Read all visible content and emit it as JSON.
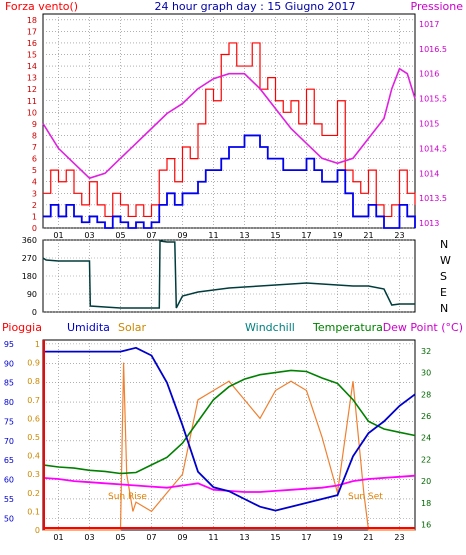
{
  "header": {
    "left": "Forza vento()",
    "title": "24 hour graph day : 15 Giugno 2017",
    "right": "Pressione"
  },
  "colors": {
    "wind_gust": "#ff0000",
    "wind_speed": "#0000ee",
    "pressure": "#e020e0",
    "direction": "#003c3c",
    "rain": "#ff0000",
    "humidity": "#0000cc",
    "solar": "#f08030",
    "windchill": "#008080",
    "temperature": "#008000",
    "dewpoint": "#ff00ff"
  },
  "legend": {
    "rain": "Pioggia",
    "humidity": "Umidita",
    "solar": "Solar",
    "windchill": "Windchill",
    "temperature": "Temperatura",
    "dewpoint": "Dew Point (°C)"
  },
  "annotations": {
    "sunrise": "Sun Rise",
    "sunset": "Sun Set"
  },
  "chart_data": [
    {
      "type": "line",
      "name": "wind-pressure",
      "x_ticks": [
        "01",
        "03",
        "05",
        "07",
        "09",
        "11",
        "13",
        "15",
        "17",
        "19",
        "21",
        "23"
      ],
      "y_left_ticks": [
        "0",
        "1",
        "2",
        "3",
        "4",
        "5",
        "6",
        "7",
        "8",
        "9",
        "10",
        "11",
        "12",
        "13",
        "14",
        "15",
        "16",
        "17",
        "18"
      ],
      "y_left_range": [
        0,
        18.5
      ],
      "y_right_ticks": [
        "1013",
        "1013.5",
        "1014",
        "1014.5",
        "1015",
        "1015.5",
        "1016",
        "1016.5",
        "1017"
      ],
      "y_right_range": [
        1012.9,
        1017.2
      ],
      "x_range": [
        0,
        24
      ],
      "series": [
        {
          "key": "gust",
          "x": [
            0,
            0.5,
            1,
            1.5,
            2,
            2.5,
            3,
            3.5,
            4,
            4.5,
            5,
            5.5,
            6,
            6.5,
            7,
            7.5,
            8,
            8.5,
            9,
            9.5,
            10,
            10.5,
            11,
            11.5,
            12,
            12.5,
            13,
            13.5,
            14,
            14.5,
            15,
            15.5,
            16,
            16.5,
            17,
            17.5,
            18,
            18.5,
            19,
            19.5,
            20,
            20.5,
            21,
            21.5,
            22,
            22.5,
            23,
            23.5,
            24
          ],
          "values": [
            3,
            5,
            4,
            5,
            3,
            2,
            4,
            2,
            1,
            3,
            2,
            1,
            2,
            1,
            2,
            5,
            6,
            4,
            7,
            6,
            9,
            12,
            11,
            15,
            16,
            14,
            14,
            16,
            12,
            13,
            11,
            10,
            11,
            9,
            12,
            9,
            8,
            8,
            11,
            5,
            4,
            3,
            5,
            2,
            1,
            2,
            5,
            3,
            2
          ]
        },
        {
          "key": "speed",
          "x": [
            0,
            0.5,
            1,
            1.5,
            2,
            2.5,
            3,
            3.5,
            4,
            4.5,
            5,
            5.5,
            6,
            6.5,
            7,
            7.5,
            8,
            8.5,
            9,
            9.5,
            10,
            10.5,
            11,
            11.5,
            12,
            12.5,
            13,
            13.5,
            14,
            14.5,
            15,
            15.5,
            16,
            16.5,
            17,
            17.5,
            18,
            18.5,
            19,
            19.5,
            20,
            20.5,
            21,
            21.5,
            22,
            22.5,
            23,
            23.5,
            24
          ],
          "values": [
            1,
            2,
            1,
            2,
            1,
            0.5,
            1,
            0.5,
            0,
            1,
            0.5,
            0,
            0.5,
            0,
            0.5,
            2,
            3,
            2,
            3,
            3,
            4,
            5,
            5,
            6,
            7,
            7,
            8,
            8,
            7,
            6,
            6,
            5,
            5,
            5,
            6,
            5,
            4,
            4,
            5,
            3,
            1,
            1,
            2,
            1,
            0,
            0,
            2,
            1,
            0
          ]
        },
        {
          "key": "pressure",
          "x": [
            0,
            1,
            2,
            3,
            4,
            5,
            6,
            7,
            8,
            9,
            10,
            11,
            12,
            13,
            14,
            15,
            16,
            17,
            18,
            19,
            20,
            21,
            22,
            22.5,
            23,
            23.5,
            24
          ],
          "values": [
            1015,
            1014.5,
            1014.2,
            1013.9,
            1014,
            1014.3,
            1014.6,
            1014.9,
            1015.2,
            1015.4,
            1015.7,
            1015.9,
            1016,
            1016,
            1015.7,
            1015.3,
            1014.9,
            1014.6,
            1014.3,
            1014.2,
            1014.3,
            1014.7,
            1015.1,
            1015.7,
            1016.1,
            1016,
            1015.5
          ]
        }
      ]
    },
    {
      "type": "line",
      "name": "wind-direction",
      "y_ticks": [
        "0",
        "90",
        "180",
        "270",
        "360"
      ],
      "y_range": [
        0,
        360
      ],
      "compass": [
        "N",
        "W",
        "S",
        "E",
        "N"
      ],
      "series": [
        {
          "key": "direction",
          "x": [
            0,
            0.2,
            1,
            2,
            3,
            3.05,
            4,
            5,
            6,
            7,
            7.5,
            7.55,
            8,
            8.5,
            8.6,
            9,
            10,
            11,
            12,
            13,
            14,
            15,
            16,
            17,
            18,
            19,
            20,
            21,
            22,
            22.5,
            23,
            24
          ],
          "values": [
            270,
            260,
            255,
            255,
            255,
            30,
            25,
            20,
            20,
            20,
            20,
            355,
            350,
            350,
            20,
            80,
            100,
            110,
            120,
            125,
            130,
            135,
            140,
            145,
            140,
            135,
            130,
            130,
            115,
            35,
            40,
            40
          ]
        }
      ]
    },
    {
      "type": "line",
      "name": "climate",
      "y_humidity_ticks": [
        "50",
        "55",
        "60",
        "65",
        "70",
        "75",
        "80",
        "85",
        "90",
        "95"
      ],
      "y_humidity_range": [
        47,
        96
      ],
      "y_solar_ticks": [
        "0",
        "0.1",
        "0.2",
        "0.3",
        "0.4",
        "0.5",
        "0.6",
        "0.7",
        "0.8",
        "0.9",
        "1"
      ],
      "y_temp_ticks": [
        "16",
        "18",
        "20",
        "22",
        "24",
        "26",
        "28",
        "30",
        "32"
      ],
      "y_temp_range": [
        15.5,
        33
      ],
      "series": [
        {
          "key": "humidity",
          "x": [
            0,
            1,
            2,
            3,
            4,
            5,
            6,
            7,
            8,
            9,
            10,
            11,
            12,
            13,
            14,
            15,
            16,
            17,
            18,
            19,
            20,
            21,
            22,
            23,
            24
          ],
          "values": [
            93,
            93,
            93,
            93,
            93,
            93,
            94,
            92,
            85,
            74,
            62,
            58,
            57,
            55,
            53,
            52,
            53,
            54,
            55,
            56,
            66,
            72,
            75,
            79,
            82
          ]
        },
        {
          "key": "solar",
          "x": [
            0,
            5,
            5.2,
            5.4,
            5.8,
            6,
            7,
            8,
            9,
            10,
            11,
            12,
            13,
            14,
            15,
            16,
            17,
            18,
            19,
            20,
            20.7,
            21,
            24
          ],
          "values": [
            0,
            0,
            0.9,
            0.3,
            0.1,
            0.15,
            0.1,
            0.2,
            0.3,
            0.7,
            0.75,
            0.8,
            0.7,
            0.6,
            0.75,
            0.8,
            0.75,
            0.5,
            0.2,
            0.8,
            0.2,
            0,
            0
          ]
        },
        {
          "key": "temperature",
          "x": [
            0,
            1,
            2,
            3,
            4,
            5,
            6,
            7,
            8,
            9,
            10,
            11,
            12,
            13,
            14,
            15,
            16,
            17,
            18,
            19,
            20,
            21,
            22,
            23,
            24
          ],
          "values": [
            21.5,
            21.3,
            21.2,
            21,
            20.9,
            20.7,
            20.8,
            21.5,
            22.2,
            23.5,
            25.5,
            27.5,
            28.7,
            29.4,
            29.8,
            30,
            30.2,
            30.1,
            29.5,
            29,
            27.5,
            25.5,
            24.8,
            24.5,
            24.2
          ]
        },
        {
          "key": "dewpoint",
          "x": [
            0,
            1,
            2,
            3,
            4,
            5,
            6,
            7,
            8,
            9,
            10,
            11,
            12,
            13,
            14,
            15,
            16,
            17,
            18,
            19,
            20,
            21,
            22,
            23,
            24
          ],
          "values": [
            20.3,
            20.2,
            20,
            19.9,
            19.8,
            19.7,
            19.6,
            19.5,
            19.4,
            19.6,
            19.8,
            19.2,
            19.1,
            19,
            19,
            19.1,
            19.2,
            19.3,
            19.4,
            19.6,
            20,
            20.2,
            20.3,
            20.4,
            20.5
          ]
        },
        {
          "key": "rain",
          "x": [
            0,
            24
          ],
          "values": [
            0,
            0
          ]
        }
      ]
    }
  ]
}
